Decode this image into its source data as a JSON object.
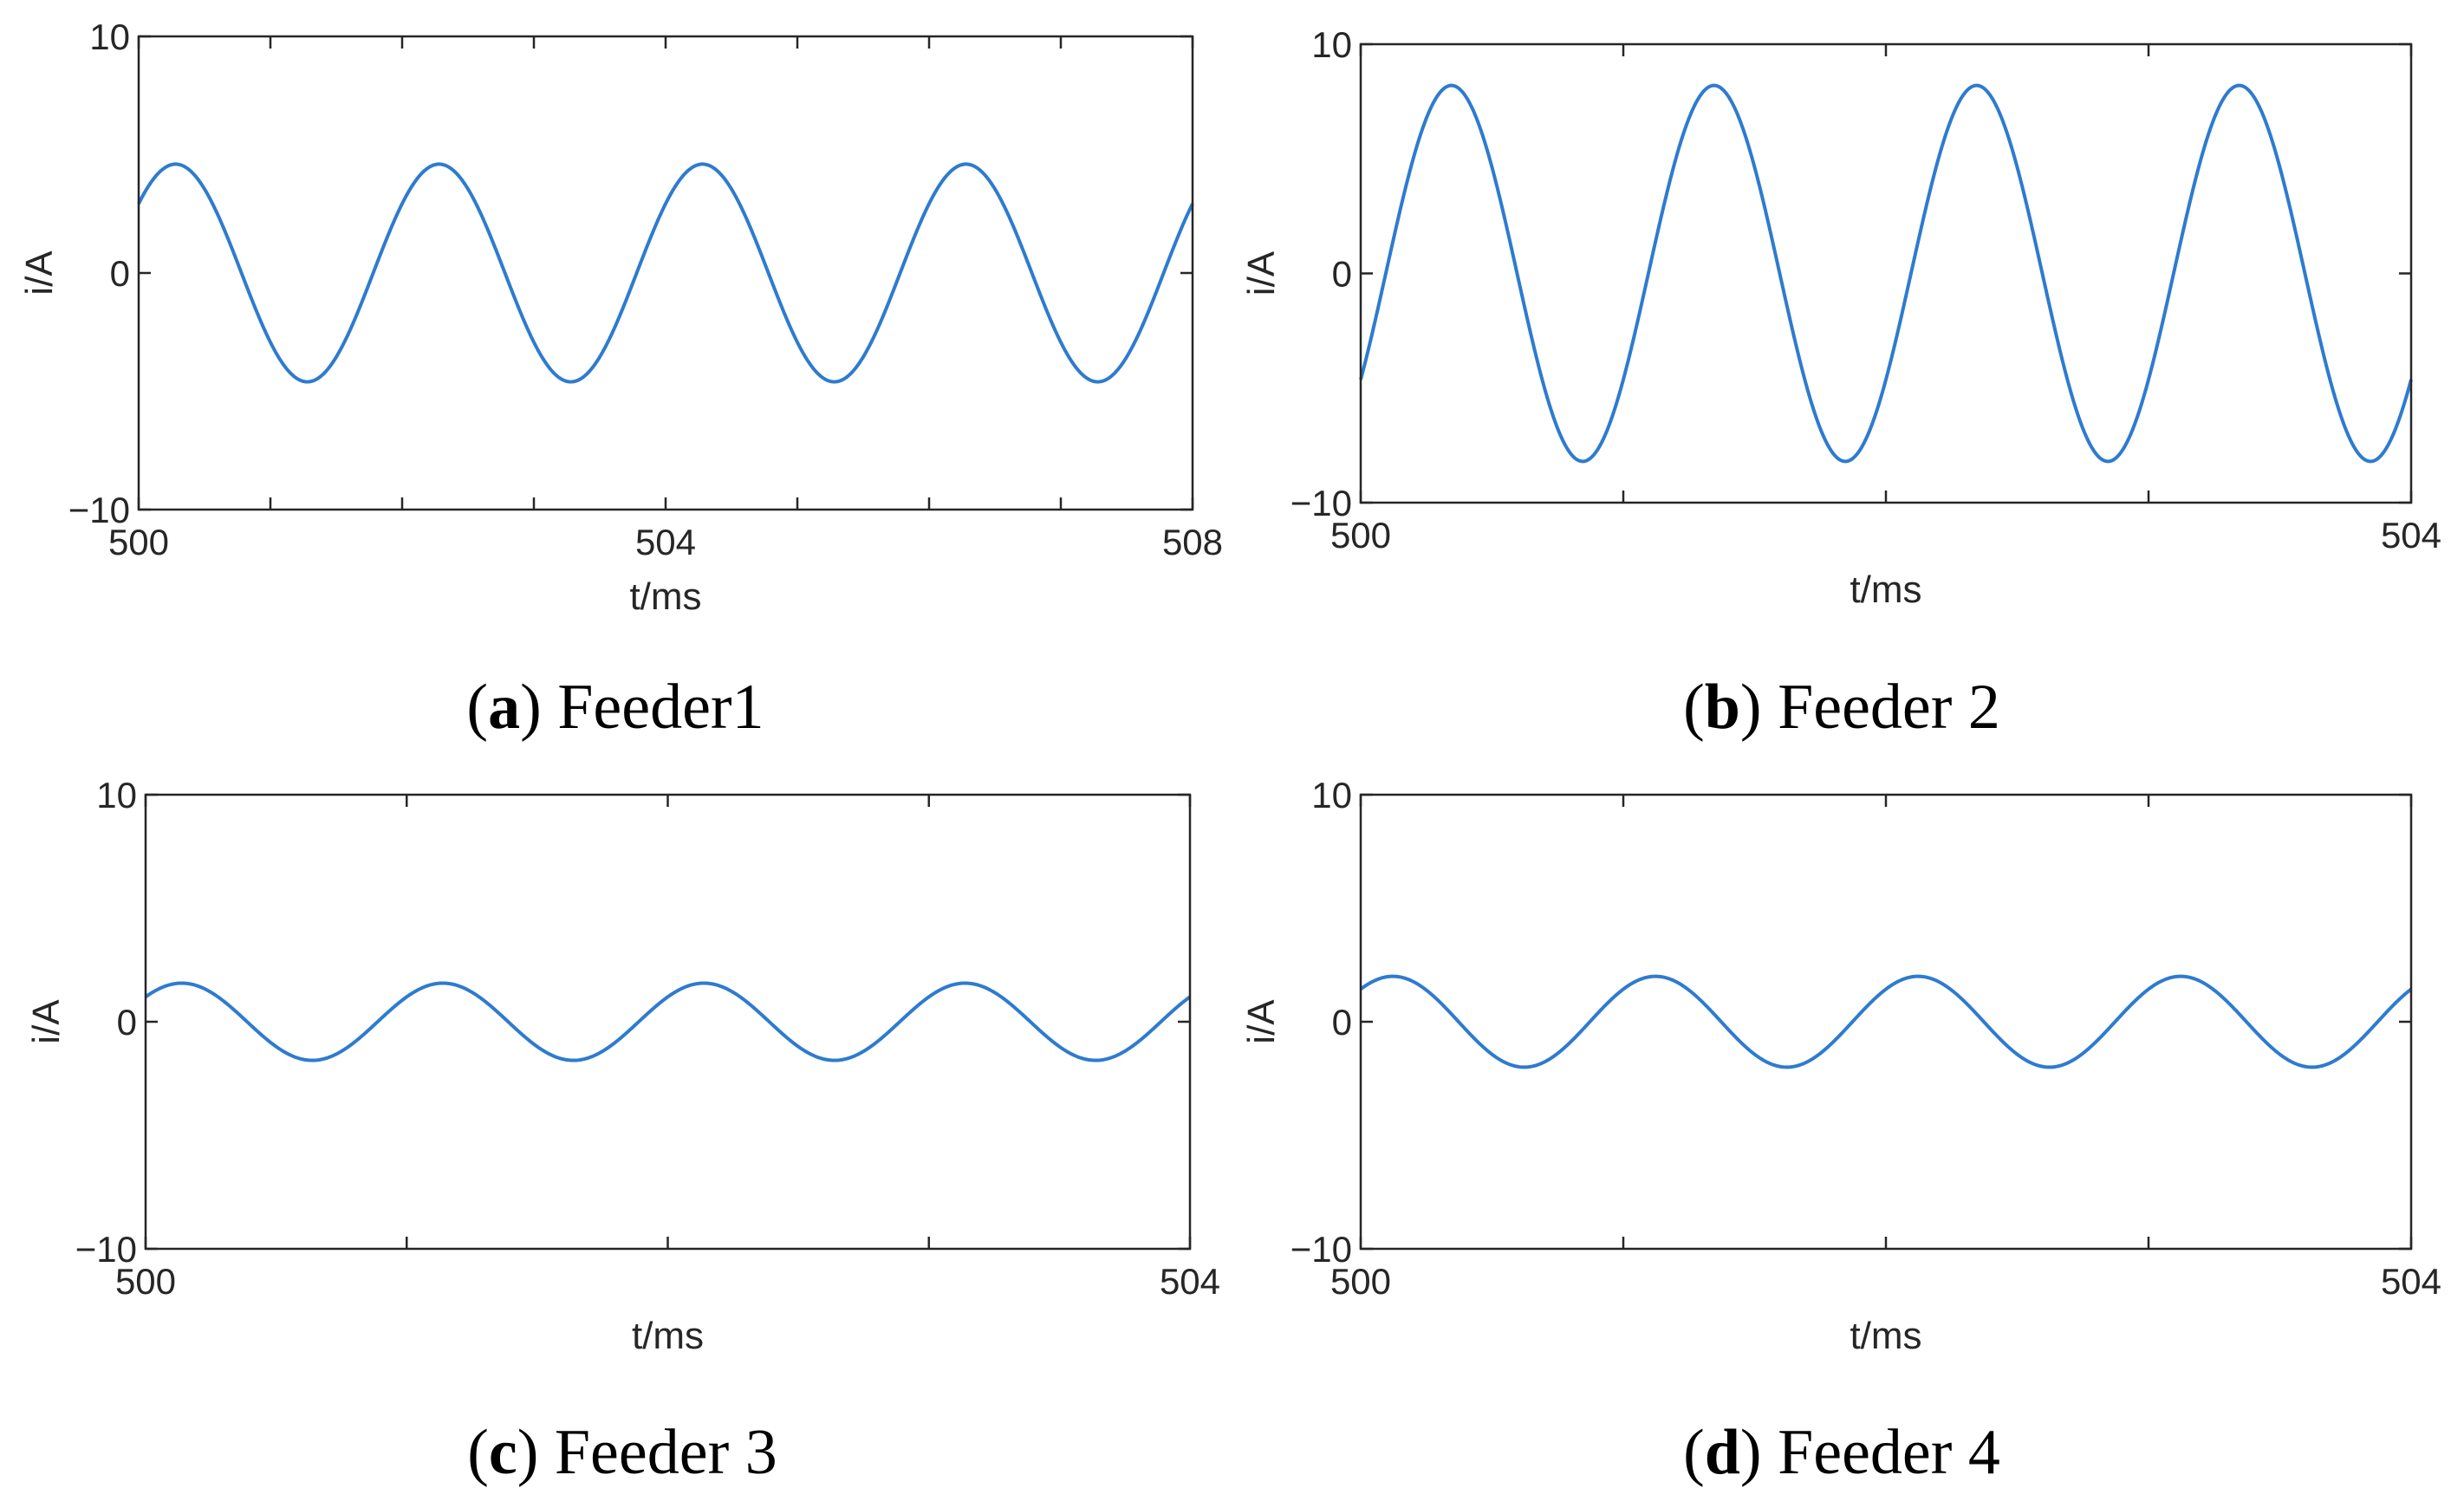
{
  "chart_data": [
    {
      "type": "line",
      "caption_letter": "a",
      "caption_text": "Feeder1",
      "xlabel": "t/ms",
      "ylabel": "i/A",
      "xlim": [
        500,
        508
      ],
      "ylim": [
        -10,
        10
      ],
      "xticks": [
        500,
        501,
        502,
        503,
        504,
        505,
        506,
        507,
        508
      ],
      "xtick_labels": [
        "500",
        "504",
        "508"
      ],
      "xtick_label_values": [
        500,
        504,
        508
      ],
      "yticks": [
        -10,
        0,
        10
      ],
      "ytick_labels": [
        "−10",
        "0",
        "10"
      ],
      "series": [
        {
          "amplitude": 4.6,
          "period_ms": 2.0,
          "phase_rad": 0.69,
          "color": "#2e7bcf"
        }
      ]
    },
    {
      "type": "line",
      "caption_letter": "b",
      "caption_text": "Feeder 2",
      "xlabel": "t/ms",
      "ylabel": "i/A",
      "xlim": [
        500,
        504
      ],
      "ylim": [
        -10,
        10
      ],
      "xticks": [
        500,
        501,
        502,
        503,
        504
      ],
      "xtick_labels": [
        "500",
        "504"
      ],
      "xtick_label_values": [
        500,
        504
      ],
      "yticks": [
        -10,
        0,
        10
      ],
      "ytick_labels": [
        "−10",
        "0",
        "10"
      ],
      "series": [
        {
          "amplitude": 8.2,
          "period_ms": 1.0,
          "phase_rad": -0.6,
          "color": "#2e7bcf"
        }
      ]
    },
    {
      "type": "line",
      "caption_letter": "c",
      "caption_text": "Feeder 3",
      "xlabel": "t/ms",
      "ylabel": "i/A",
      "xlim": [
        500,
        504
      ],
      "ylim": [
        -10,
        10
      ],
      "xticks": [
        500,
        501,
        502,
        503,
        504
      ],
      "xtick_labels": [
        "500",
        "504"
      ],
      "xtick_label_values": [
        500,
        504
      ],
      "yticks": [
        -10,
        0,
        10
      ],
      "ytick_labels": [
        "−10",
        "0",
        "10"
      ],
      "series": [
        {
          "amplitude": 1.7,
          "period_ms": 1.0,
          "phase_rad": 0.7,
          "color": "#2e7bcf"
        }
      ]
    },
    {
      "type": "line",
      "caption_letter": "d",
      "caption_text": "Feeder 4",
      "xlabel": "t/ms",
      "ylabel": "i/A",
      "xlim": [
        500,
        504
      ],
      "ylim": [
        -10,
        10
      ],
      "xticks": [
        500,
        501,
        502,
        503,
        504
      ],
      "xtick_labels": [
        "500",
        "504"
      ],
      "xtick_label_values": [
        500,
        504
      ],
      "yticks": [
        -10,
        0,
        10
      ],
      "ytick_labels": [
        "−10",
        "0",
        "10"
      ],
      "series": [
        {
          "amplitude": 2.0,
          "period_ms": 1.0,
          "phase_rad": 0.8,
          "color": "#2e7bcf"
        }
      ]
    }
  ]
}
